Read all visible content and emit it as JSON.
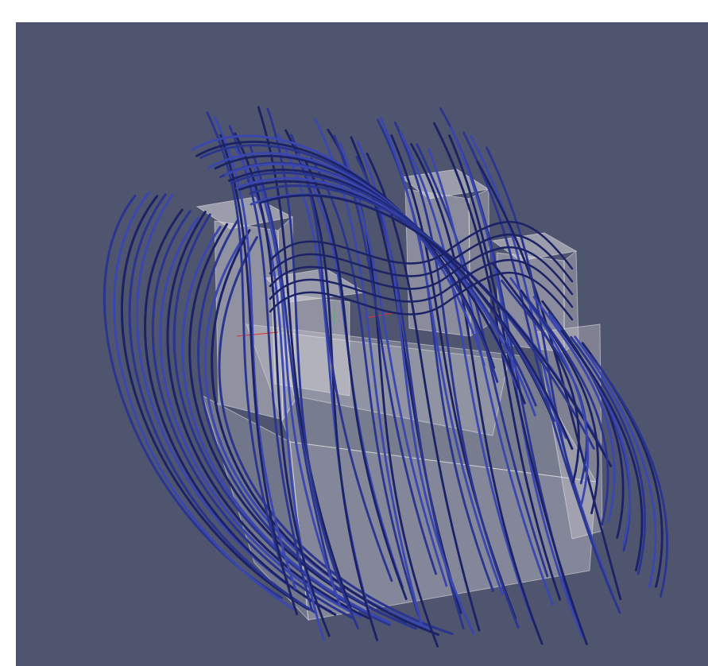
{
  "viewport": {
    "background_color": "#4f546f",
    "outer_background_color": "#ffffff"
  },
  "model": {
    "solid_color": "#d6d4d8",
    "solid_opacity": 0.55,
    "edge_color": "#eeeeee"
  },
  "streamlines": {
    "color": "#2a3590",
    "highlight_color": "#3a47b0",
    "dark_color": "#1b2266"
  },
  "axes_hint": {
    "x_axis_color": "#e03030",
    "y_axis_color": "#30c060",
    "z_axis_color": "#3060e0"
  }
}
